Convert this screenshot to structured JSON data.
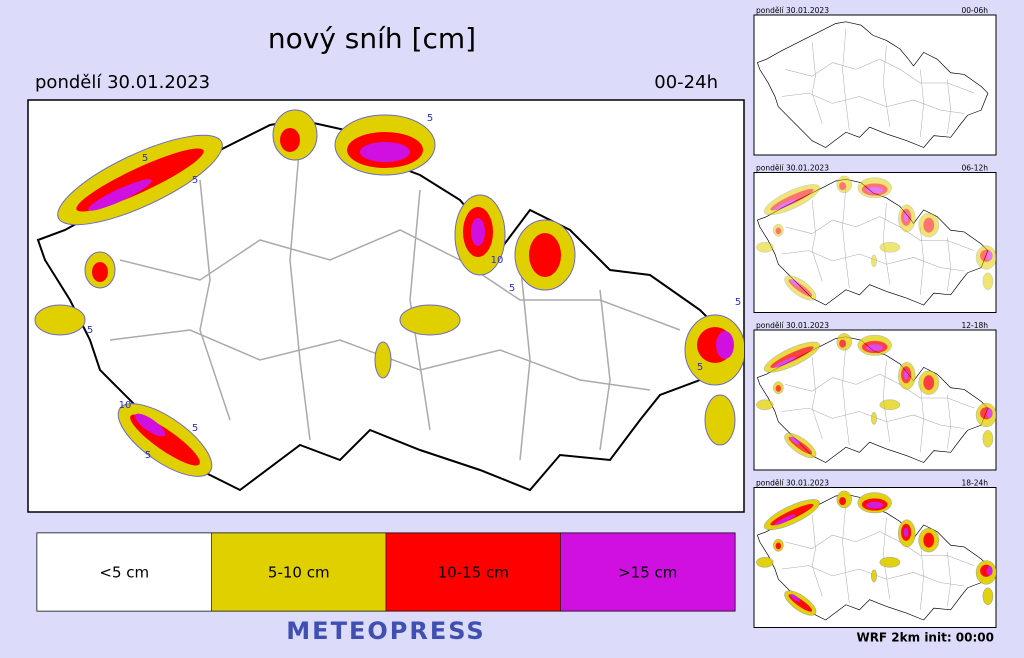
{
  "header": {
    "title": "nový sníh [cm]",
    "date": "pondělí 30.01.2023",
    "period": "00-24h"
  },
  "contour_labels": [
    "5",
    "5",
    "5",
    "10",
    "5",
    "5",
    "10",
    "5",
    "5",
    "5",
    "5"
  ],
  "legend": {
    "items": [
      {
        "label": "<5 cm",
        "color": "#ffffff"
      },
      {
        "label": "5-10 cm",
        "color": "#e0d000"
      },
      {
        "label": "10-15 cm",
        "color": "#ff0000"
      },
      {
        "label": ">15 cm",
        "color": "#d010e0"
      }
    ]
  },
  "brand": "METEOPRESS",
  "panels": [
    {
      "date": "pondělí 30.01.2023",
      "period": "00-06h"
    },
    {
      "date": "pondělí 30.01.2023",
      "period": "06-12h"
    },
    {
      "date": "pondělí 30.01.2023",
      "period": "12-18h"
    },
    {
      "date": "pondělí 30.01.2023",
      "period": "18-24h"
    }
  ],
  "footer": "WRF 2km init: 00:00"
}
